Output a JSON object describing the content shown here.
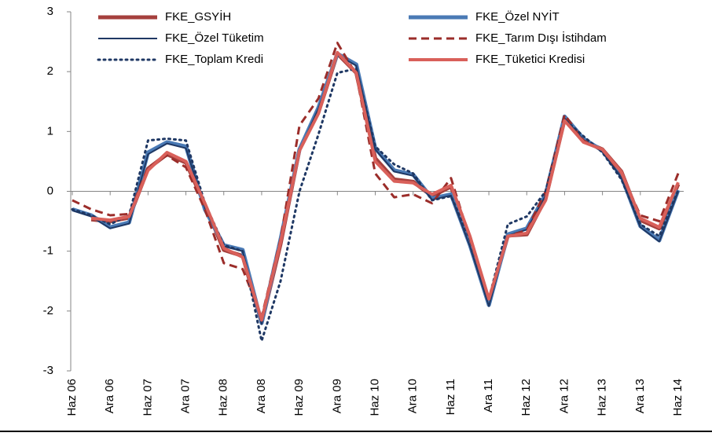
{
  "chart_data": {
    "type": "line",
    "categories": [
      "Haz 06",
      null,
      "Ara 06",
      null,
      "Haz 07",
      null,
      "Ara 07",
      null,
      "Haz 08",
      null,
      "Ara 08",
      null,
      "Haz 09",
      null,
      "Ara 09",
      null,
      "Haz 10",
      null,
      "Ara 10",
      null,
      "Haz 11",
      null,
      "Ara 11",
      null,
      "Haz 12",
      null,
      "Ara 12",
      null,
      "Haz 13",
      null,
      "Ara 13",
      null,
      "Haz 14"
    ],
    "ylim": [
      -3,
      3
    ],
    "yticks": [
      -3,
      -2,
      -1,
      0,
      1,
      2,
      3
    ],
    "legend_position": "top",
    "series": [
      {
        "name": "FKE_GSYİH",
        "color": "#a5403d",
        "style": "solid",
        "line_width": 5,
        "values": [
          null,
          -0.47,
          -0.5,
          -0.44,
          0.38,
          0.62,
          0.48,
          -0.22,
          -0.98,
          -1.08,
          -2.2,
          -0.88,
          0.7,
          1.32,
          2.3,
          1.98,
          0.55,
          0.2,
          0.16,
          -0.08,
          0.08,
          -0.78,
          -1.85,
          -0.74,
          -0.72,
          -0.12,
          1.2,
          0.84,
          0.7,
          0.33,
          -0.48,
          -0.62,
          0.12
        ]
      },
      {
        "name": "FKE_Özel NYİT",
        "color": "#4a7ab5",
        "style": "solid",
        "line_width": 5,
        "values": [
          -0.3,
          -0.4,
          -0.6,
          -0.52,
          0.65,
          0.82,
          0.75,
          -0.3,
          -0.9,
          -0.98,
          -2.2,
          -0.8,
          0.7,
          1.4,
          2.3,
          2.12,
          0.72,
          0.35,
          0.28,
          -0.12,
          -0.05,
          -0.9,
          -1.9,
          -0.72,
          -0.62,
          -0.05,
          1.25,
          0.88,
          0.68,
          0.25,
          -0.58,
          -0.82,
          0.02
        ]
      },
      {
        "name": "FKE_Özel Tüketim",
        "color": "#1f3864",
        "style": "solid",
        "line_width": 2,
        "values": [
          -0.32,
          -0.42,
          -0.62,
          -0.54,
          0.62,
          0.8,
          0.72,
          -0.28,
          -0.92,
          -1.0,
          -2.22,
          -0.82,
          0.68,
          1.38,
          2.28,
          2.1,
          0.7,
          0.33,
          0.26,
          -0.14,
          -0.07,
          -0.92,
          -1.92,
          -0.74,
          -0.64,
          -0.07,
          1.22,
          0.86,
          0.66,
          0.23,
          -0.6,
          -0.84,
          0.0
        ]
      },
      {
        "name": "FKE_Tarım Dışı İstihdam",
        "color": "#9b2d2a",
        "style": "dashed",
        "line_width": 3,
        "values": [
          -0.15,
          -0.3,
          -0.4,
          -0.38,
          0.4,
          0.6,
          0.4,
          -0.3,
          -1.2,
          -1.3,
          -2.1,
          -0.8,
          1.1,
          1.55,
          2.48,
          1.95,
          0.3,
          -0.1,
          -0.05,
          -0.2,
          0.22,
          -0.8,
          -1.8,
          -0.75,
          -0.65,
          0.0,
          1.28,
          0.85,
          0.68,
          0.3,
          -0.4,
          -0.5,
          0.3
        ]
      },
      {
        "name": "FKE_Toplam Kredi",
        "color": "#1f3864",
        "style": "dotted",
        "line_width": 3,
        "values": [
          -0.3,
          -0.4,
          -0.55,
          -0.4,
          0.85,
          0.88,
          0.85,
          -0.2,
          -0.9,
          -1.0,
          -2.5,
          -1.5,
          0.0,
          0.95,
          1.98,
          2.05,
          0.75,
          0.45,
          0.3,
          -0.15,
          -0.08,
          -0.8,
          -1.8,
          -0.55,
          -0.42,
          0.0,
          1.2,
          0.92,
          0.65,
          0.2,
          -0.55,
          -0.75,
          0.02
        ]
      },
      {
        "name": "FKE_Tüketici Kredisi",
        "color": "#d9605a",
        "style": "solid",
        "line_width": 4,
        "values": [
          null,
          -0.45,
          -0.48,
          -0.42,
          0.35,
          0.65,
          0.5,
          -0.2,
          -0.95,
          -1.1,
          -2.15,
          -0.85,
          0.68,
          1.3,
          2.32,
          1.98,
          0.5,
          0.17,
          0.14,
          -0.05,
          0.1,
          -0.75,
          -1.8,
          -0.75,
          -0.7,
          -0.15,
          1.18,
          0.82,
          0.7,
          0.32,
          -0.45,
          -0.6,
          0.15
        ]
      }
    ]
  }
}
